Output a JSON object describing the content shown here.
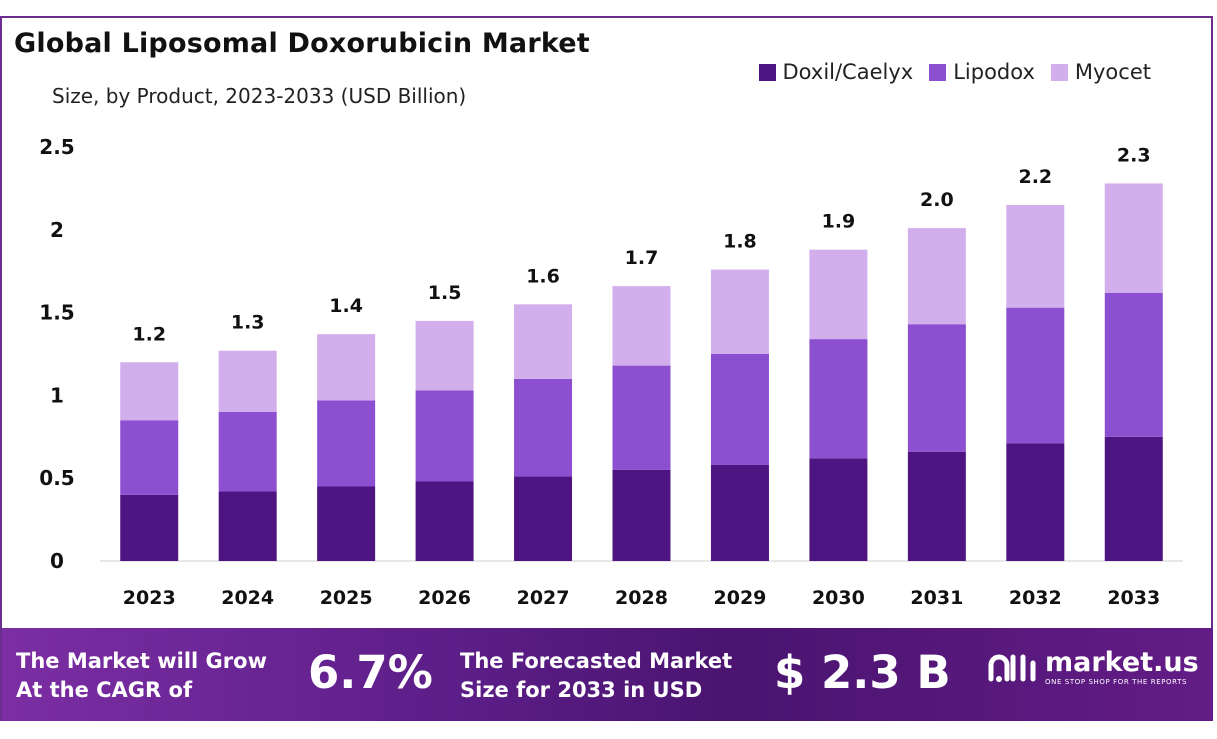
{
  "header": {
    "title": "Global Liposomal Doxorubicin Market",
    "subtitle": "Size, by Product, 2023-2033 (USD Billion)"
  },
  "legend": [
    {
      "label": "Doxil/Caelyx",
      "color": "#4e1582"
    },
    {
      "label": "Lipodox",
      "color": "#8b4fcf"
    },
    {
      "label": "Myocet",
      "color": "#d2aeed"
    }
  ],
  "chart_data": {
    "type": "bar",
    "stacked": true,
    "categories": [
      "2023",
      "2024",
      "2025",
      "2026",
      "2027",
      "2028",
      "2029",
      "2030",
      "2031",
      "2032",
      "2033"
    ],
    "series": [
      {
        "name": "Doxil/Caelyx",
        "color": "#4e1582",
        "values": [
          0.4,
          0.42,
          0.45,
          0.48,
          0.51,
          0.55,
          0.58,
          0.62,
          0.66,
          0.71,
          0.75
        ]
      },
      {
        "name": "Lipodox",
        "color": "#8b4fcf",
        "values": [
          0.45,
          0.48,
          0.52,
          0.55,
          0.59,
          0.63,
          0.67,
          0.72,
          0.77,
          0.82,
          0.87
        ]
      },
      {
        "name": "Myocet",
        "color": "#d2aeed",
        "values": [
          0.35,
          0.37,
          0.4,
          0.42,
          0.45,
          0.48,
          0.51,
          0.54,
          0.58,
          0.62,
          0.66
        ]
      }
    ],
    "totals_labels": [
      "1.2",
      "1.3",
      "1.4",
      "1.5",
      "1.6",
      "1.7",
      "1.8",
      "1.9",
      "2.0",
      "2.2",
      "2.3"
    ],
    "ylim": [
      0,
      2.5
    ],
    "yticks": [
      "0",
      "0.5",
      "1",
      "1.5",
      "2",
      "2.5"
    ],
    "grid": false,
    "legend_position": "top-right"
  },
  "banner": {
    "cagr_text_line1": "The Market will Grow",
    "cagr_text_line2": "At the CAGR of",
    "cagr_value": "6.7%",
    "forecast_text_line1": "The Forecasted Market",
    "forecast_text_line2": "Size for 2033 in USD",
    "forecast_value": "$ 2.3 B",
    "logo_name": "market.us",
    "logo_tagline": "ONE STOP SHOP FOR THE REPORTS"
  }
}
